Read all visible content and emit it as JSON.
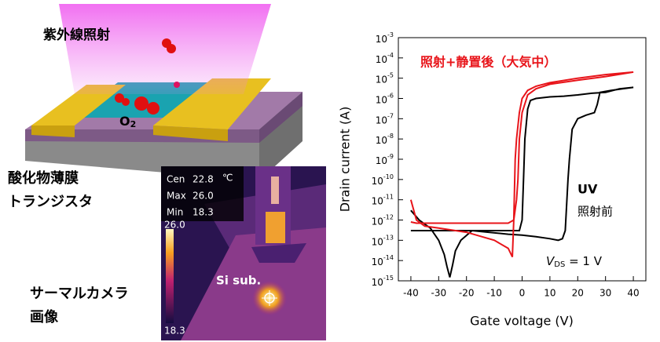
{
  "illustration": {
    "uv_label": "紫外線照射",
    "molecule": {
      "text": "O",
      "sub": "2"
    },
    "device_label": [
      "酸化物薄膜",
      "トランジスタ"
    ]
  },
  "thermal_image": {
    "caption": [
      "サーマルカメラ",
      "画像"
    ],
    "sample_label": "Si sub.",
    "readout": [
      [
        "Cen",
        "22.8"
      ],
      [
        "Max",
        "26.0"
      ],
      [
        "Min",
        "18.3"
      ]
    ],
    "unit": "℃",
    "scale_max": "26.0",
    "scale_min": "18.3"
  },
  "chart_data": {
    "type": "line",
    "xlabel": "Gate voltage (V)",
    "ylabel": "Drain current (A)",
    "xlim": [
      -44.5,
      44.5
    ],
    "xticks": [
      -40,
      -30,
      -20,
      -10,
      0,
      10,
      20,
      30,
      40
    ],
    "ylim": [
      1e-15,
      0.001
    ],
    "log_y": true,
    "yticks": [
      {
        "value": 0.001,
        "label": "10",
        "exponent": "-3"
      },
      {
        "value": 0.0001,
        "label": "10",
        "exponent": "-4"
      },
      {
        "value": 1e-05,
        "label": "10",
        "exponent": "-5"
      },
      {
        "value": 1e-06,
        "label": "10",
        "exponent": "-6"
      },
      {
        "value": 1e-07,
        "label": "10",
        "exponent": "-7"
      },
      {
        "value": 1e-08,
        "label": "10",
        "exponent": "-8"
      },
      {
        "value": 1e-09,
        "label": "10",
        "exponent": "-9"
      },
      {
        "value": 1e-10,
        "label": "10",
        "exponent": "-10"
      },
      {
        "value": 1e-11,
        "label": "10",
        "exponent": "-11"
      },
      {
        "value": 1e-12,
        "label": "10",
        "exponent": "-12"
      },
      {
        "value": 1e-13,
        "label": "10",
        "exponent": "-13"
      },
      {
        "value": 1e-14,
        "label": "10",
        "exponent": "-14"
      },
      {
        "value": 1e-15,
        "label": "10",
        "exponent": "-15"
      }
    ],
    "annotation": {
      "symbol": "V",
      "sub": "DS",
      "text": " = 1 V"
    },
    "series": [
      {
        "label_lines": [
          "UV",
          "照射前"
        ],
        "color": "#000000",
        "x": [
          -40,
          -37,
          -33,
          -30,
          -28,
          -27,
          -26,
          -25,
          -24,
          -22,
          -18,
          -12,
          -5,
          0,
          5,
          10,
          13,
          14.5,
          15.5,
          16.5,
          17,
          18,
          20,
          23,
          26,
          27,
          28,
          32,
          36,
          40,
          40,
          35,
          30,
          25,
          20,
          15,
          10,
          5,
          3,
          2,
          1,
          0.5,
          0,
          -1,
          -5,
          -10,
          -20,
          -30,
          -40
        ],
        "values": [
          3e-12,
          1e-12,
          4e-13,
          1e-13,
          2e-14,
          5e-15,
          1.5e-15,
          6e-15,
          3e-14,
          1e-13,
          3e-13,
          2.5e-13,
          2e-13,
          1.8e-13,
          1.5e-13,
          1.2e-13,
          1e-13,
          1.2e-13,
          3e-13,
          1e-10,
          1e-09,
          3e-08,
          1e-07,
          1.5e-07,
          2e-07,
          5e-07,
          2e-06,
          2.5e-06,
          3e-06,
          3.5e-06,
          3.5e-06,
          3e-06,
          2e-06,
          1.8e-06,
          1.5e-06,
          1.3e-06,
          1.2e-06,
          1e-06,
          8e-07,
          3e-07,
          1e-08,
          1e-10,
          1e-12,
          3e-13,
          3e-13,
          3e-13,
          3e-13,
          3e-13,
          3e-13
        ]
      },
      {
        "label_lines": [
          "照射+静置後（大気中）"
        ],
        "color": "#e8141a",
        "x": [
          -40,
          -38,
          -35,
          -30,
          -20,
          -10,
          -5,
          -3.5,
          -3,
          -2.5,
          -2,
          -1,
          0,
          2,
          5,
          10,
          20,
          30,
          40,
          40,
          30,
          20,
          10,
          5,
          2,
          0,
          -1,
          -1.5,
          -2,
          -3,
          -5,
          -10,
          -20,
          -30,
          -38,
          -40
        ],
        "values": [
          1e-11,
          1e-12,
          5e-13,
          4e-13,
          2.5e-13,
          1e-13,
          4e-14,
          1.5e-14,
          1e-12,
          1e-09,
          1e-08,
          2e-07,
          1e-06,
          2.5e-06,
          4e-06,
          6e-06,
          1e-05,
          1.5e-05,
          2e-05,
          2e-05,
          1.2e-05,
          8e-06,
          5e-06,
          3e-06,
          1.5e-06,
          2e-07,
          1e-08,
          1e-10,
          1e-11,
          1e-12,
          7e-13,
          7e-13,
          7e-13,
          7e-13,
          7e-13,
          8e-13
        ]
      }
    ]
  }
}
